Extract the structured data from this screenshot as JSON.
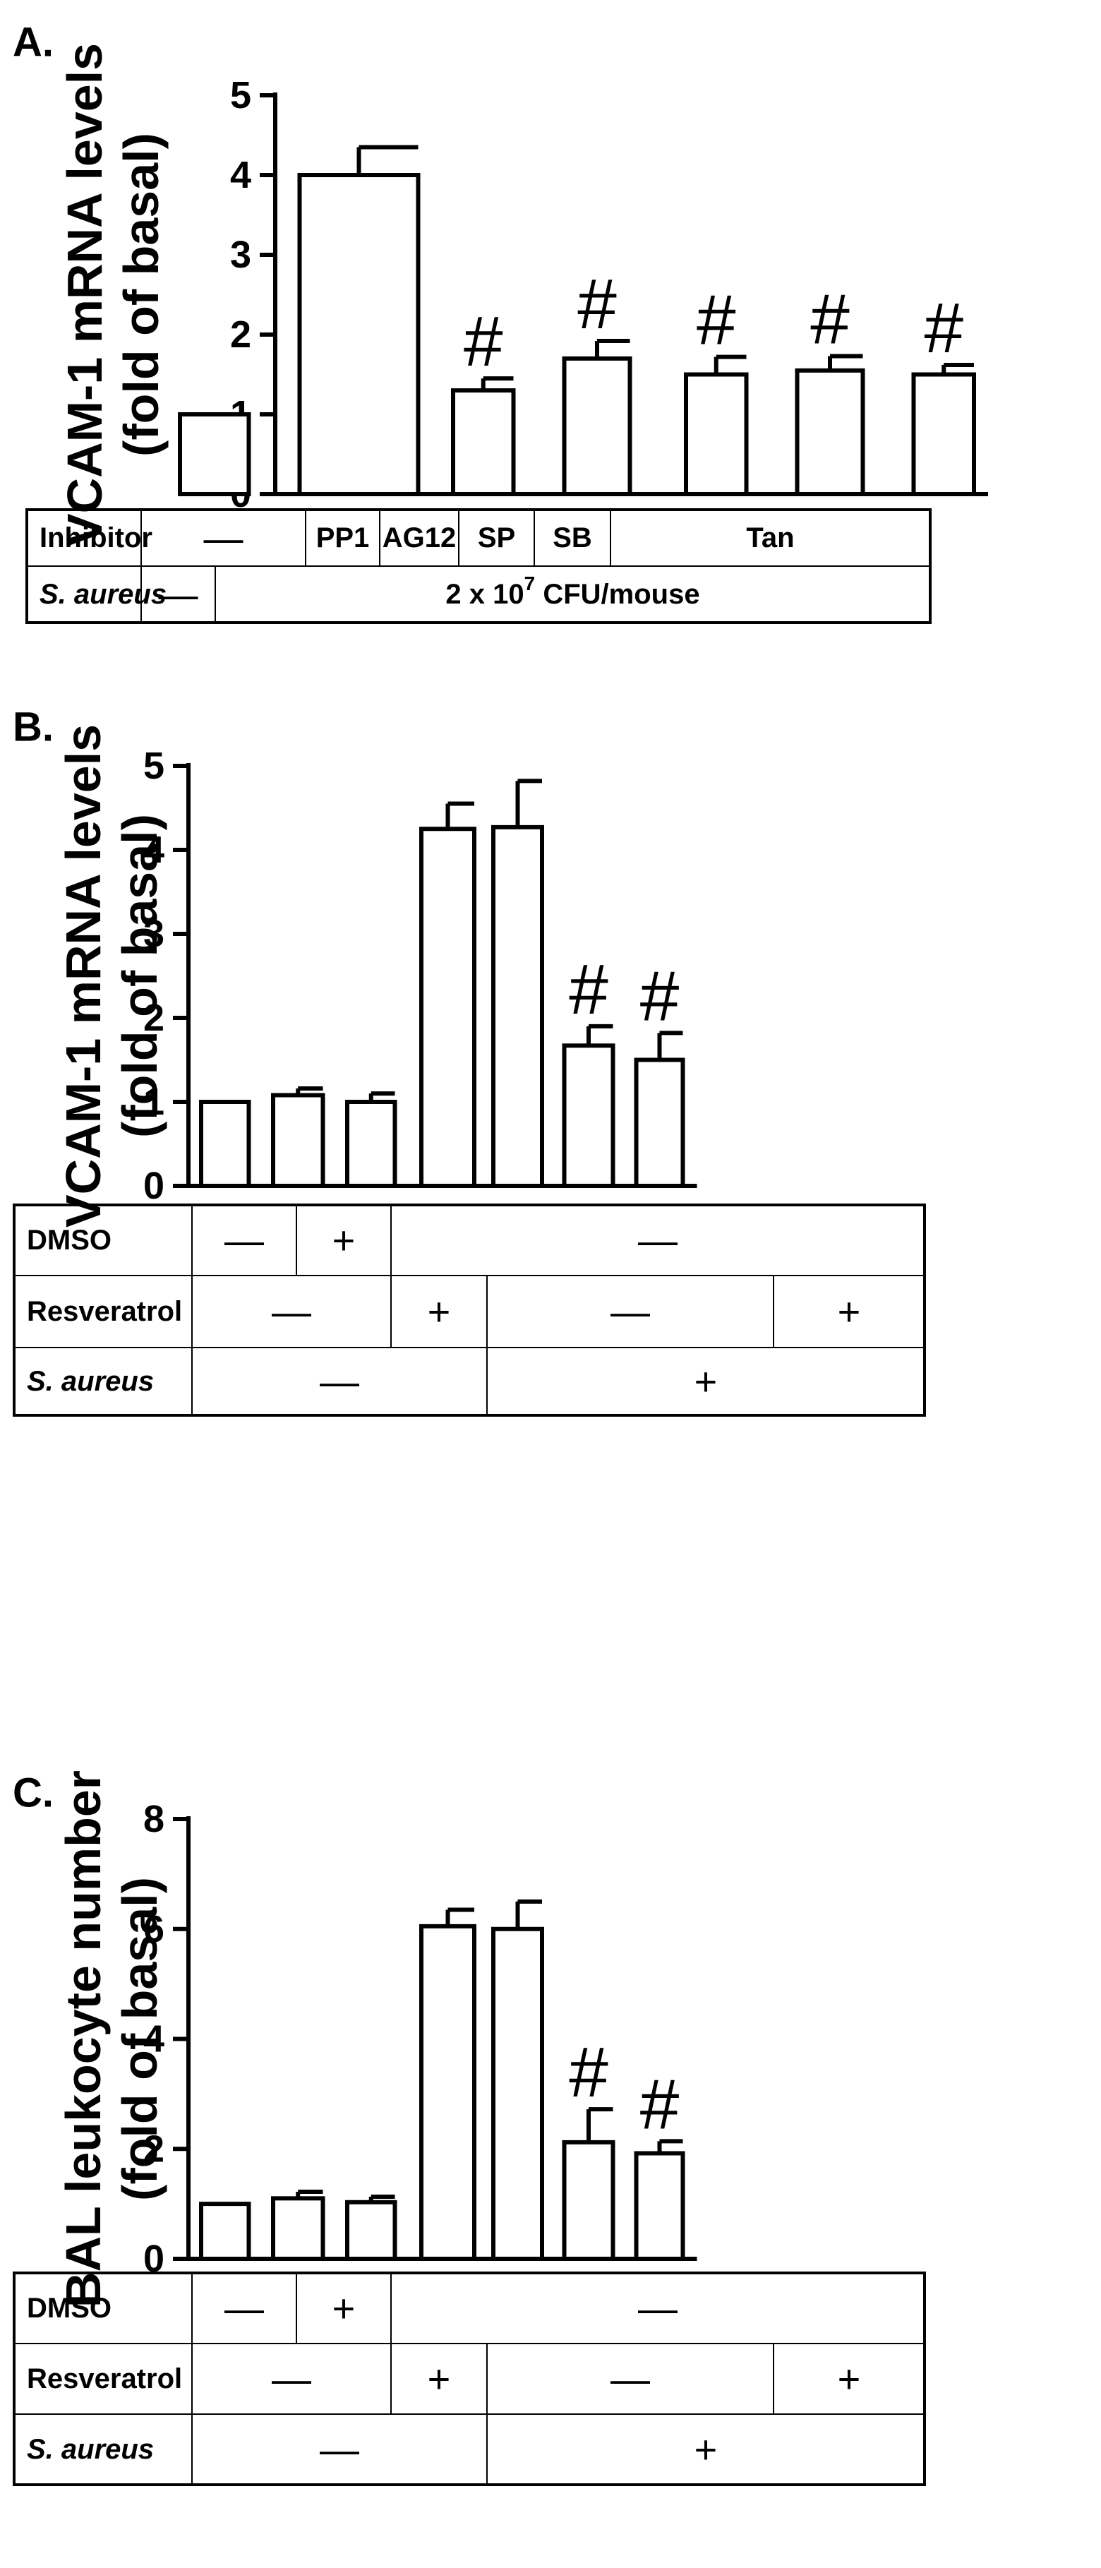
{
  "panels": [
    {
      "label": "A.",
      "ylabel_line1": "VCAM-1 mRNA levels",
      "ylabel_line2": "(fold of basal)",
      "sig_marker": "#",
      "table": [
        {
          "label": "Inhibitor",
          "italic": false,
          "cells": [
            {
              "text": "—",
              "span": [
                0,
                1
              ]
            },
            {
              "text": "PP1",
              "span": [
                2,
                2
              ]
            },
            {
              "text": "AG12",
              "span": [
                3,
                3
              ]
            },
            {
              "text": "SP",
              "span": [
                4,
                4
              ]
            },
            {
              "text": "SB",
              "span": [
                5,
                5
              ]
            },
            {
              "text": "Tan",
              "span": [
                6,
                6
              ]
            }
          ]
        },
        {
          "label": "S. aureus",
          "italic": true,
          "cells": [
            {
              "text": "—",
              "span": [
                0,
                0
              ]
            },
            {
              "text": "2 x 10",
              "sup": "7",
              "text_after": " CFU/mouse",
              "span": [
                1,
                6
              ]
            }
          ]
        }
      ]
    },
    {
      "label": "B.",
      "ylabel_line1": "VCAM-1 mRNA levels",
      "ylabel_line2": "(fold of basal)",
      "sig_marker": "#",
      "table": [
        {
          "label": "DMSO",
          "italic": false,
          "cells": [
            {
              "text": "—",
              "span": [
                0,
                0
              ]
            },
            {
              "text": "+",
              "span": [
                1,
                1
              ]
            },
            {
              "text": "—",
              "span": [
                2,
                6
              ]
            }
          ]
        },
        {
          "label": "Resveratrol",
          "italic": false,
          "cells": [
            {
              "text": "—",
              "span": [
                0,
                1
              ]
            },
            {
              "text": "+",
              "span": [
                2,
                2
              ]
            },
            {
              "text": "—",
              "span": [
                3,
                4
              ]
            },
            {
              "text": "+",
              "span": [
                5,
                6
              ]
            }
          ]
        },
        {
          "label": "S. aureus",
          "italic": true,
          "cells": [
            {
              "text": "—",
              "span": [
                0,
                2
              ]
            },
            {
              "text": "+",
              "span": [
                3,
                6
              ]
            }
          ]
        }
      ]
    },
    {
      "label": "C.",
      "ylabel_line1": "BAL leukocyte number",
      "ylabel_line2": "(fold of basal)",
      "sig_marker": "#",
      "table": [
        {
          "label": "DMSO",
          "italic": false,
          "cells": [
            {
              "text": "—",
              "span": [
                0,
                0
              ]
            },
            {
              "text": "+",
              "span": [
                1,
                1
              ]
            },
            {
              "text": "—",
              "span": [
                2,
                6
              ]
            }
          ]
        },
        {
          "label": "Resveratrol",
          "italic": false,
          "cells": [
            {
              "text": "—",
              "span": [
                0,
                1
              ]
            },
            {
              "text": "+",
              "span": [
                2,
                2
              ]
            },
            {
              "text": "—",
              "span": [
                3,
                4
              ]
            },
            {
              "text": "+",
              "span": [
                5,
                6
              ]
            }
          ]
        },
        {
          "label": "S. aureus",
          "italic": true,
          "cells": [
            {
              "text": "—",
              "span": [
                0,
                2
              ]
            },
            {
              "text": "+",
              "span": [
                3,
                6
              ]
            }
          ]
        }
      ]
    }
  ],
  "chart_data": [
    {
      "type": "bar",
      "title": "",
      "ylabel": "VCAM-1 mRNA levels (fold of basal)",
      "xlabel": "",
      "ylim": [
        0,
        5
      ],
      "yticks": [
        0,
        1,
        2,
        3,
        4,
        5
      ],
      "grid": false,
      "values": [
        1.0,
        4.0,
        1.3,
        1.7,
        1.5,
        1.55,
        1.5
      ],
      "errors": [
        0,
        0.35,
        0.15,
        0.22,
        0.22,
        0.18,
        0.12
      ],
      "significant": [
        false,
        false,
        true,
        true,
        true,
        true,
        true
      ]
    },
    {
      "type": "bar",
      "title": "",
      "ylabel": "VCAM-1 mRNA levels (fold of basal)",
      "xlabel": "",
      "ylim": [
        0,
        5
      ],
      "yticks": [
        0,
        1,
        2,
        3,
        4,
        5
      ],
      "grid": false,
      "values": [
        1.0,
        1.08,
        1.0,
        4.25,
        4.27,
        1.67,
        1.5
      ],
      "errors": [
        0,
        0.08,
        0.1,
        0.3,
        0.55,
        0.23,
        0.32
      ],
      "significant": [
        false,
        false,
        false,
        false,
        false,
        true,
        true
      ]
    },
    {
      "type": "bar",
      "title": "",
      "ylabel": "BAL leukocyte number (fold of basal)",
      "xlabel": "",
      "ylim": [
        0,
        8
      ],
      "yticks": [
        0,
        2,
        4,
        6,
        8
      ],
      "grid": false,
      "values": [
        1.0,
        1.1,
        1.03,
        6.05,
        6.0,
        2.12,
        1.92
      ],
      "errors": [
        0,
        0.12,
        0.1,
        0.3,
        0.5,
        0.6,
        0.22
      ],
      "significant": [
        false,
        false,
        false,
        false,
        false,
        true,
        true
      ]
    }
  ]
}
